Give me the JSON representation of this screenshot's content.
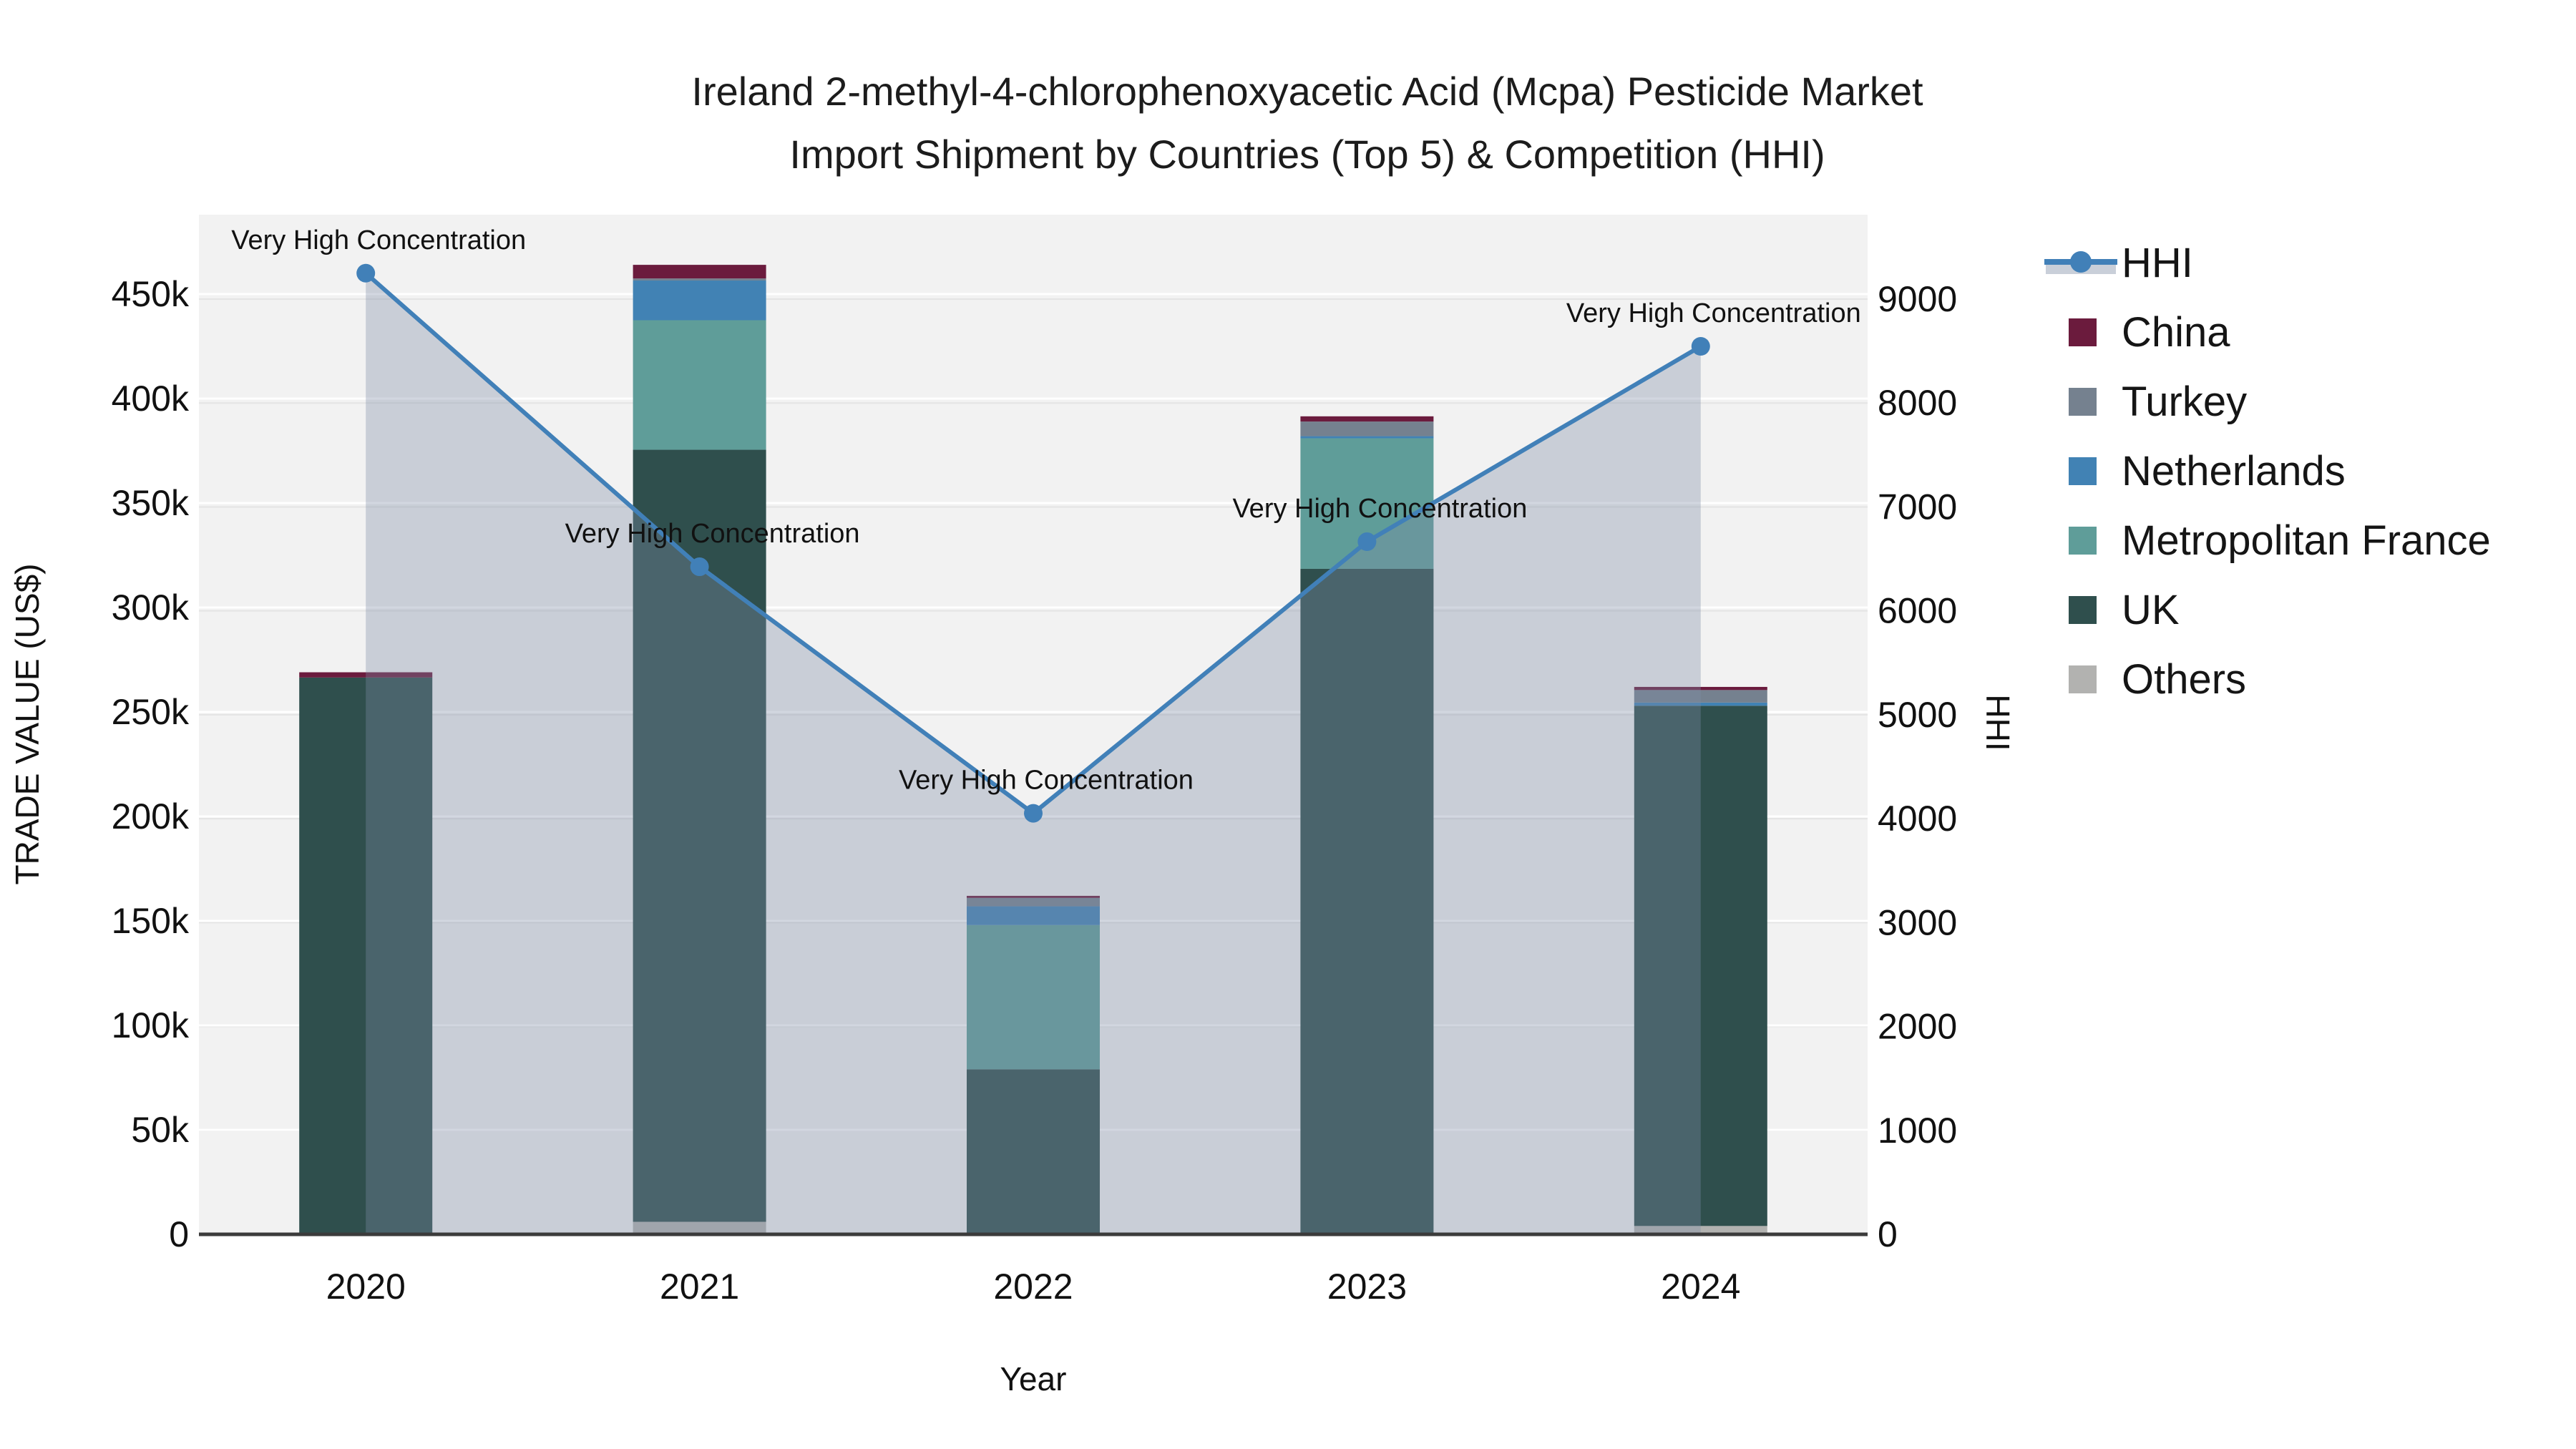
{
  "title": {
    "line1": "Ireland 2-methyl-4-chlorophenoxyacetic Acid (Mcpa) Pesticide Market",
    "line2": "Import Shipment by Countries (Top 5) & Competition (HHI)"
  },
  "axes": {
    "left": {
      "title": "TRADE VALUE (US$)",
      "tick_labels": [
        "0",
        "50k",
        "100k",
        "150k",
        "200k",
        "250k",
        "300k",
        "350k",
        "400k",
        "450k"
      ],
      "tick_values_usd": [
        0,
        50000,
        100000,
        150000,
        200000,
        250000,
        300000,
        350000,
        400000,
        450000
      ]
    },
    "right": {
      "title": "HHI",
      "tick_labels": [
        "0",
        "1000",
        "2000",
        "3000",
        "4000",
        "5000",
        "6000",
        "7000",
        "8000",
        "9000"
      ],
      "tick_values": [
        0,
        1000,
        2000,
        3000,
        4000,
        5000,
        6000,
        7000,
        8000,
        9000
      ]
    },
    "x": {
      "title": "Year",
      "categories": [
        "2020",
        "2021",
        "2022",
        "2023",
        "2024"
      ]
    }
  },
  "legend": {
    "items": [
      {
        "label": "HHI",
        "type": "line",
        "color": "#4180B8"
      },
      {
        "label": "China",
        "type": "swatch",
        "color": "#6B1B3D"
      },
      {
        "label": "Turkey",
        "type": "swatch",
        "color": "#75818F"
      },
      {
        "label": "Netherlands",
        "type": "swatch",
        "color": "#4182B4"
      },
      {
        "label": "Metropolitan France",
        "type": "swatch",
        "color": "#5F9D99"
      },
      {
        "label": "UK",
        "type": "swatch",
        "color": "#2F4F4D"
      },
      {
        "label": "Others",
        "type": "swatch",
        "color": "#B2B2B0"
      }
    ]
  },
  "colors": {
    "hhi_line": "#4180B8",
    "area_fill": "#7E8CA6",
    "area_fill_opacity": 0.35,
    "area_legend_band": "#C9CFD9",
    "plot_background": "#F2F2F2",
    "gridline_left": "#FFFFFF",
    "gridline_right": "#E4E4E4",
    "axis_line": "#3B3B3B",
    "text": "#111111"
  },
  "annotation_text": "Very High Concentration",
  "chart_data": {
    "type": "bar",
    "subtype": "stacked-bars-with-line-overlay",
    "title": "Ireland 2-methyl-4-chlorophenoxyacetic Acid (Mcpa) Pesticide Market Import Shipment by Countries (Top 5) & Competition (HHI)",
    "xlabel": "Year",
    "ylabel_left": "TRADE VALUE (US$)",
    "ylabel_right": "HHI",
    "categories": [
      "2020",
      "2021",
      "2022",
      "2023",
      "2024"
    ],
    "series": [
      {
        "name": "Others",
        "color": "#B2B2B0",
        "values": [
          0,
          6000,
          0,
          0,
          4000
        ]
      },
      {
        "name": "UK",
        "color": "#2F4F4D",
        "values": [
          266500,
          369500,
          79000,
          318500,
          249000
        ]
      },
      {
        "name": "Metropolitan France",
        "color": "#5F9D99",
        "values": [
          0,
          62000,
          69000,
          62500,
          0
        ]
      },
      {
        "name": "Netherlands",
        "color": "#4182B4",
        "values": [
          0,
          19000,
          9000,
          1000,
          1500
        ]
      },
      {
        "name": "Turkey",
        "color": "#75818F",
        "values": [
          0,
          1000,
          4000,
          7000,
          6000
        ]
      },
      {
        "name": "China",
        "color": "#6B1B3D",
        "values": [
          2500,
          6500,
          1000,
          2500,
          1500
        ]
      }
    ],
    "bar_totals_usd": [
      269000,
      464000,
      162000,
      391500,
      262000
    ],
    "line_series": {
      "name": "HHI",
      "color": "#4180B8",
      "values": [
        9200,
        6390,
        4030,
        6630,
        8500
      ],
      "area": true,
      "markers": true
    },
    "point_annotations": [
      "Very High Concentration",
      "Very High Concentration",
      "Very High Concentration",
      "Very High Concentration",
      "Very High Concentration"
    ],
    "ylim_left_usd": [
      0,
      487000
    ],
    "ylim_right_hhi": [
      0,
      9750
    ],
    "grid": true,
    "legend_position": "right",
    "stack_order_bottom_to_top": [
      "Others",
      "UK",
      "Metropolitan France",
      "Netherlands",
      "Turkey",
      "China"
    ]
  }
}
